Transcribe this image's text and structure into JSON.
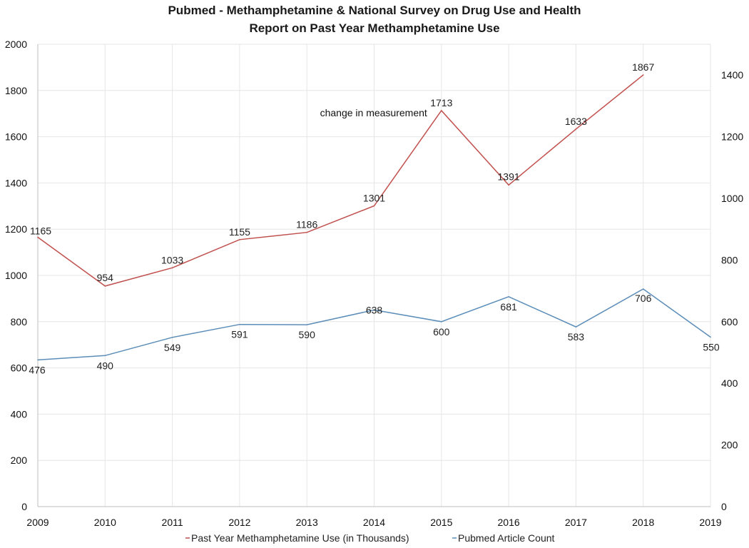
{
  "chart_data": {
    "type": "line",
    "title": [
      "Pubmed - Methamphetamine  & National Survey on Drug Use and Health",
      "Report on Past Year Methamphetamine Use"
    ],
    "xlabel": "",
    "ylabel": "",
    "x": [
      2009,
      2010,
      2011,
      2012,
      2013,
      2014,
      2015,
      2016,
      2017,
      2018,
      2019
    ],
    "xlim": [
      2009,
      2019
    ],
    "ylim": [
      0,
      2000
    ],
    "y_ticks": [
      0,
      200,
      400,
      600,
      800,
      1000,
      1200,
      1400,
      1600,
      1800,
      2000
    ],
    "y2lim": [
      0,
      1500
    ],
    "y2_ticks": [
      0,
      200,
      400,
      600,
      800,
      1000,
      1200,
      1400
    ],
    "grid": true,
    "legend": "bottom",
    "annotation": {
      "text": "change in measurement",
      "x": 2015
    },
    "series": [
      {
        "name": "Past Year Methamphetamine Use (in Thousands)",
        "axis": "left",
        "color": "#c0504d",
        "x": [
          2009,
          2010,
          2011,
          2012,
          2013,
          2014,
          2015,
          2016,
          2017,
          2018
        ],
        "values": [
          1165,
          954,
          1033,
          1155,
          1186,
          1301,
          1713,
          1391,
          1633,
          1867
        ]
      },
      {
        "name": "Pubmed Article Count",
        "axis": "right",
        "color": "#5b8db8",
        "x": [
          2009,
          2010,
          2011,
          2012,
          2013,
          2014,
          2015,
          2016,
          2017,
          2018,
          2019
        ],
        "values": [
          476,
          490,
          549,
          591,
          590,
          638,
          600,
          681,
          583,
          706,
          550
        ]
      }
    ]
  }
}
